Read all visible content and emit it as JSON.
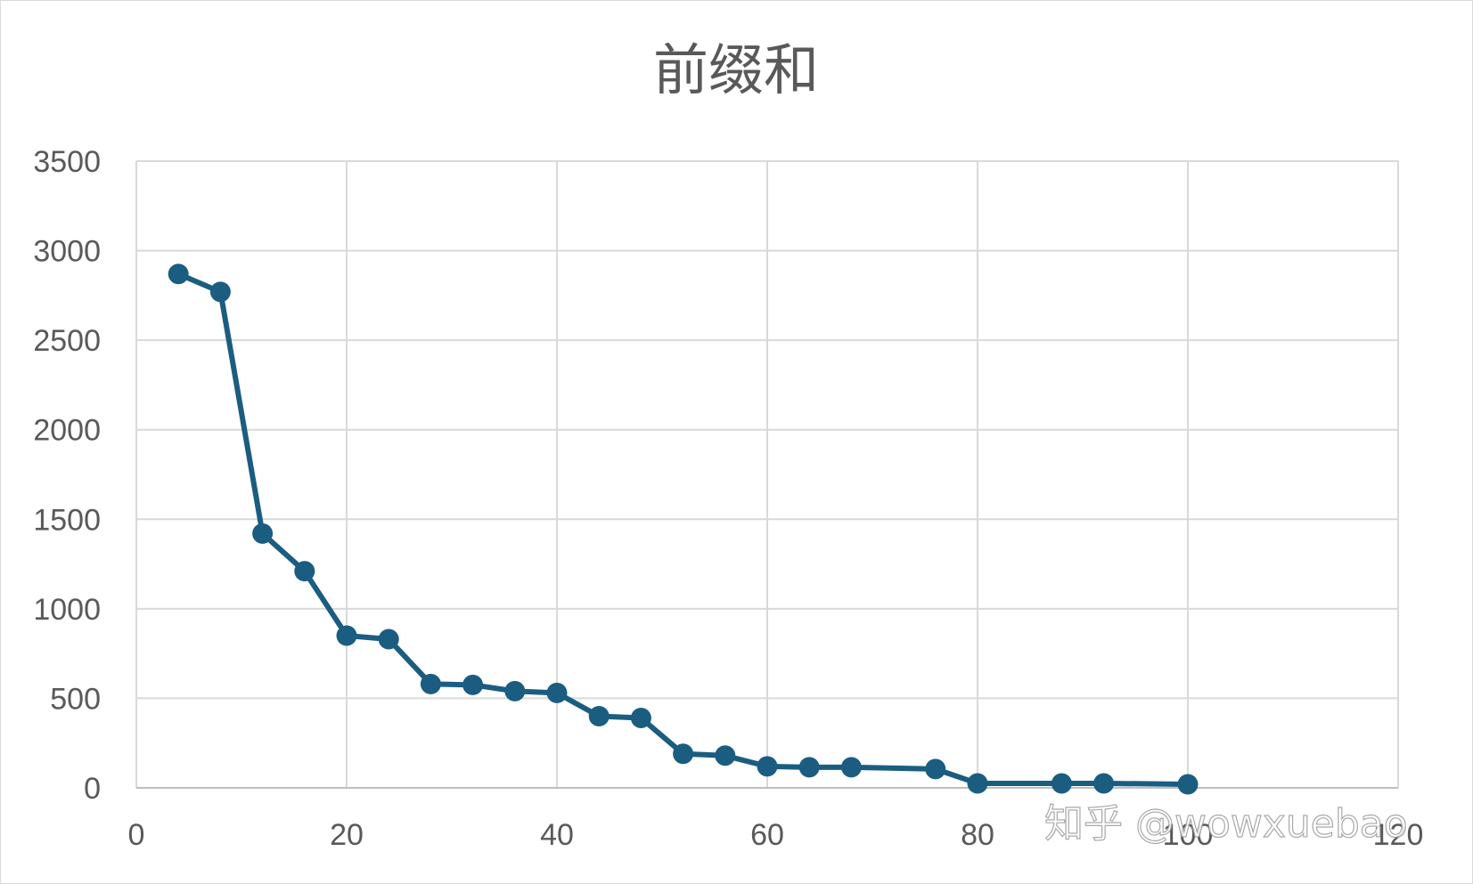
{
  "chart_data": {
    "type": "line",
    "title": "前缀和",
    "xlabel": "",
    "ylabel": "",
    "xlim": [
      0,
      120
    ],
    "ylim": [
      0,
      3500
    ],
    "x_ticks": [
      0,
      20,
      40,
      60,
      80,
      100,
      120
    ],
    "y_ticks": [
      0,
      500,
      1000,
      1500,
      2000,
      2500,
      3000,
      3500
    ],
    "grid": true,
    "series": [
      {
        "color": "#1b5d80",
        "x": [
          4,
          8,
          12,
          16,
          20,
          24,
          28,
          32,
          36,
          40,
          44,
          48,
          52,
          56,
          60,
          64,
          68,
          76,
          80,
          88,
          92,
          100
        ],
        "y": [
          2870,
          2770,
          1420,
          1210,
          850,
          830,
          580,
          575,
          540,
          530,
          400,
          390,
          190,
          180,
          120,
          115,
          115,
          105,
          25,
          25,
          25,
          20
        ]
      }
    ]
  },
  "watermark": "知乎 @wowxuebao"
}
